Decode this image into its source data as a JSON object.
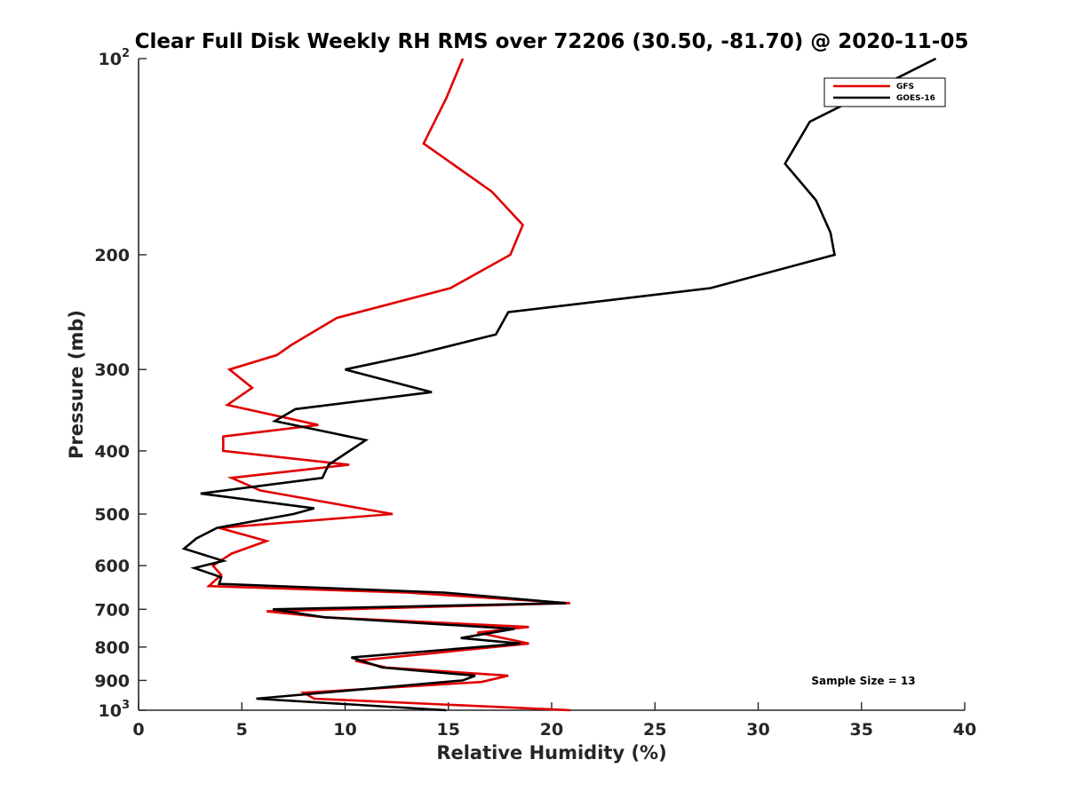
{
  "chart_data": {
    "type": "line",
    "title": "Clear Full Disk Weekly RH RMS over 72206 (30.50, -81.70) @ 2020-11-05",
    "xlabel": "Relative Humidity (%)",
    "ylabel": "Pressure (mb)",
    "xlim": [
      0,
      40
    ],
    "ylim": [
      100,
      1000
    ],
    "yscale": "log",
    "yreversed": true,
    "grid": false,
    "legend_position": "top-right",
    "xticks": [
      "0",
      "5",
      "10",
      "15",
      "20",
      "25",
      "30",
      "35",
      "40"
    ],
    "yticks": [
      {
        "value": 100,
        "base": "10",
        "exp": "2"
      },
      {
        "value": 200,
        "label": "200"
      },
      {
        "value": 300,
        "label": "300"
      },
      {
        "value": 400,
        "label": "400"
      },
      {
        "value": 500,
        "label": "500"
      },
      {
        "value": 600,
        "label": "600"
      },
      {
        "value": 700,
        "label": "700"
      },
      {
        "value": 800,
        "label": "800"
      },
      {
        "value": 900,
        "label": "900"
      },
      {
        "value": 1000,
        "base": "10",
        "exp": "3"
      }
    ],
    "annotation": "Sample Size = 13",
    "series": [
      {
        "name": "GFS",
        "color": "#e00000",
        "points": [
          [
            15.7,
            100
          ],
          [
            14.9,
            115
          ],
          [
            13.8,
            135
          ],
          [
            17.1,
            160
          ],
          [
            18.6,
            180
          ],
          [
            18.0,
            200
          ],
          [
            15.1,
            225
          ],
          [
            9.6,
            250
          ],
          [
            7.4,
            275
          ],
          [
            6.7,
            285
          ],
          [
            4.4,
            300
          ],
          [
            5.5,
            320
          ],
          [
            4.3,
            340
          ],
          [
            8.7,
            365
          ],
          [
            4.1,
            380
          ],
          [
            4.1,
            400
          ],
          [
            10.2,
            420
          ],
          [
            4.5,
            440
          ],
          [
            5.9,
            460
          ],
          [
            12.3,
            500
          ],
          [
            3.9,
            525
          ],
          [
            6.2,
            550
          ],
          [
            4.5,
            575
          ],
          [
            3.6,
            600
          ],
          [
            4.0,
            620
          ],
          [
            3.4,
            645
          ],
          [
            13.0,
            660
          ],
          [
            20.9,
            685
          ],
          [
            6.2,
            705
          ],
          [
            9.0,
            720
          ],
          [
            18.9,
            745
          ],
          [
            16.4,
            760
          ],
          [
            18.9,
            790
          ],
          [
            10.5,
            840
          ],
          [
            12.0,
            860
          ],
          [
            17.9,
            885
          ],
          [
            16.6,
            905
          ],
          [
            8.0,
            940
          ],
          [
            8.5,
            960
          ],
          [
            20.9,
            1000
          ]
        ]
      },
      {
        "name": "GOES-16",
        "color": "#000000",
        "points": [
          [
            38.6,
            100
          ],
          [
            32.5,
            125
          ],
          [
            31.3,
            145
          ],
          [
            32.8,
            165
          ],
          [
            33.5,
            185
          ],
          [
            33.7,
            200
          ],
          [
            27.7,
            225
          ],
          [
            17.9,
            245
          ],
          [
            17.3,
            265
          ],
          [
            13.3,
            285
          ],
          [
            10.0,
            300
          ],
          [
            14.2,
            325
          ],
          [
            7.6,
            345
          ],
          [
            6.6,
            360
          ],
          [
            11.0,
            385
          ],
          [
            9.2,
            420
          ],
          [
            8.9,
            440
          ],
          [
            3.0,
            465
          ],
          [
            8.5,
            490
          ],
          [
            7.5,
            500
          ],
          [
            3.8,
            525
          ],
          [
            2.8,
            545
          ],
          [
            2.2,
            565
          ],
          [
            4.1,
            590
          ],
          [
            2.7,
            605
          ],
          [
            4.0,
            625
          ],
          [
            3.9,
            640
          ],
          [
            14.8,
            660
          ],
          [
            20.7,
            685
          ],
          [
            6.5,
            700
          ],
          [
            9.0,
            720
          ],
          [
            18.2,
            750
          ],
          [
            15.6,
            775
          ],
          [
            18.5,
            790
          ],
          [
            10.3,
            830
          ],
          [
            11.8,
            860
          ],
          [
            16.3,
            885
          ],
          [
            15.7,
            900
          ],
          [
            5.7,
            960
          ],
          [
            14.9,
            1000
          ]
        ]
      }
    ]
  }
}
